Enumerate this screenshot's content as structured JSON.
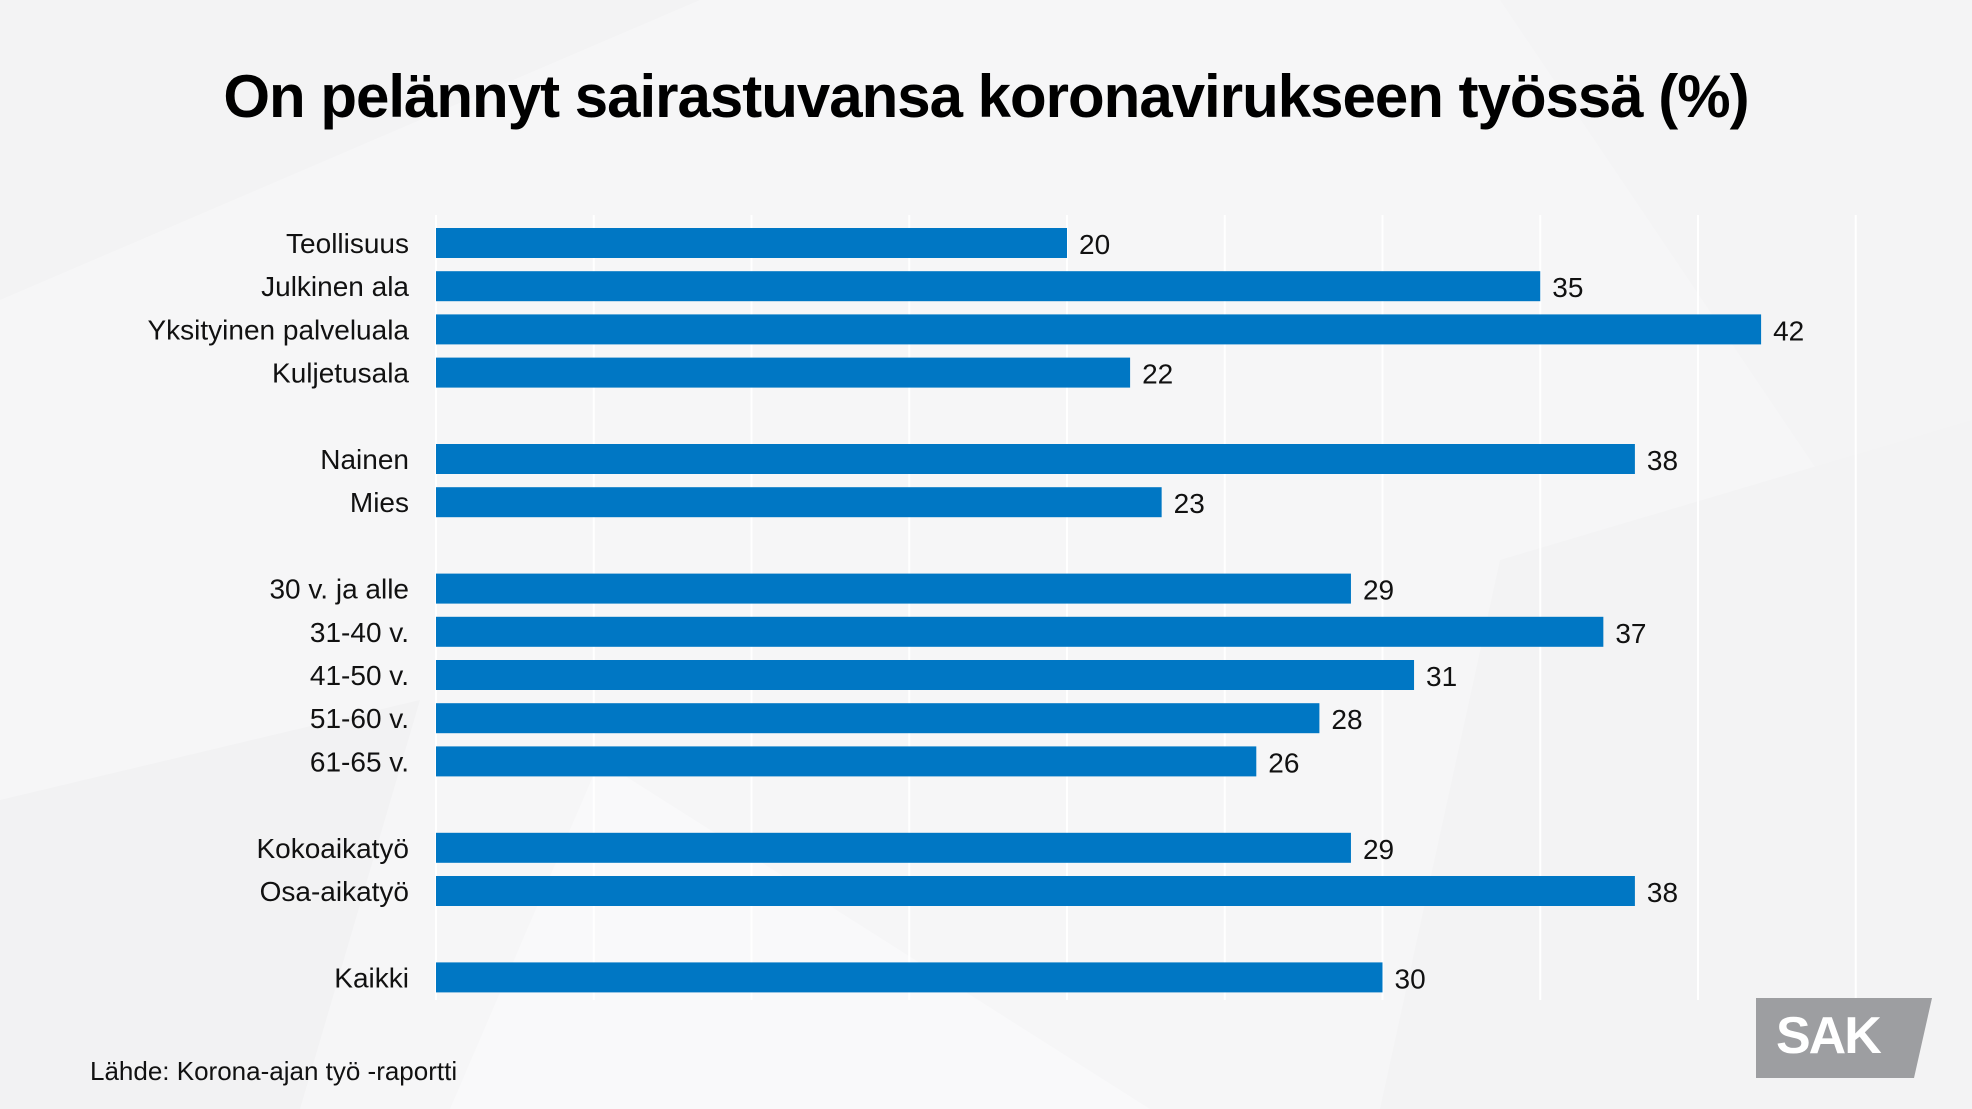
{
  "chart_data": {
    "type": "bar",
    "orientation": "horizontal",
    "title": "On pelännyt sairastuvansa koronavirukseen työssä (%)",
    "xlabel": "",
    "ylabel": "",
    "xlim": [
      0,
      45
    ],
    "grid": true,
    "grid_step": 5,
    "bar_color": "#0077c4",
    "groups": [
      {
        "categories": [
          "Teollisuus",
          "Julkinen ala",
          "Yksityinen palveluala",
          "Kuljetusala"
        ],
        "values": [
          20,
          35,
          42,
          22
        ]
      },
      {
        "categories": [
          "Nainen",
          "Mies"
        ],
        "values": [
          38,
          23
        ]
      },
      {
        "categories": [
          "30 v. ja alle",
          "31-40 v.",
          "41-50 v.",
          "51-60 v.",
          "61-65 v."
        ],
        "values": [
          29,
          37,
          31,
          28,
          26
        ]
      },
      {
        "categories": [
          "Kokoaikatyö",
          "Osa-aikatyö"
        ],
        "values": [
          29,
          38
        ]
      },
      {
        "categories": [
          "Kaikki"
        ],
        "values": [
          30
        ]
      }
    ],
    "categories": [
      "Teollisuus",
      "Julkinen ala",
      "Yksityinen palveluala",
      "Kuljetusala",
      "Nainen",
      "Mies",
      "30 v. ja alle",
      "31-40 v.",
      "41-50 v.",
      "51-60 v.",
      "61-65 v.",
      "Kokoaikatyö",
      "Osa-aikatyö",
      "Kaikki"
    ],
    "values": [
      20,
      35,
      42,
      22,
      38,
      23,
      29,
      37,
      31,
      28,
      26,
      29,
      38,
      30
    ]
  },
  "source": "Lähde: Korona-ajan työ -raportti",
  "logo": {
    "text": "SAK",
    "color": "#9d9ea1"
  }
}
